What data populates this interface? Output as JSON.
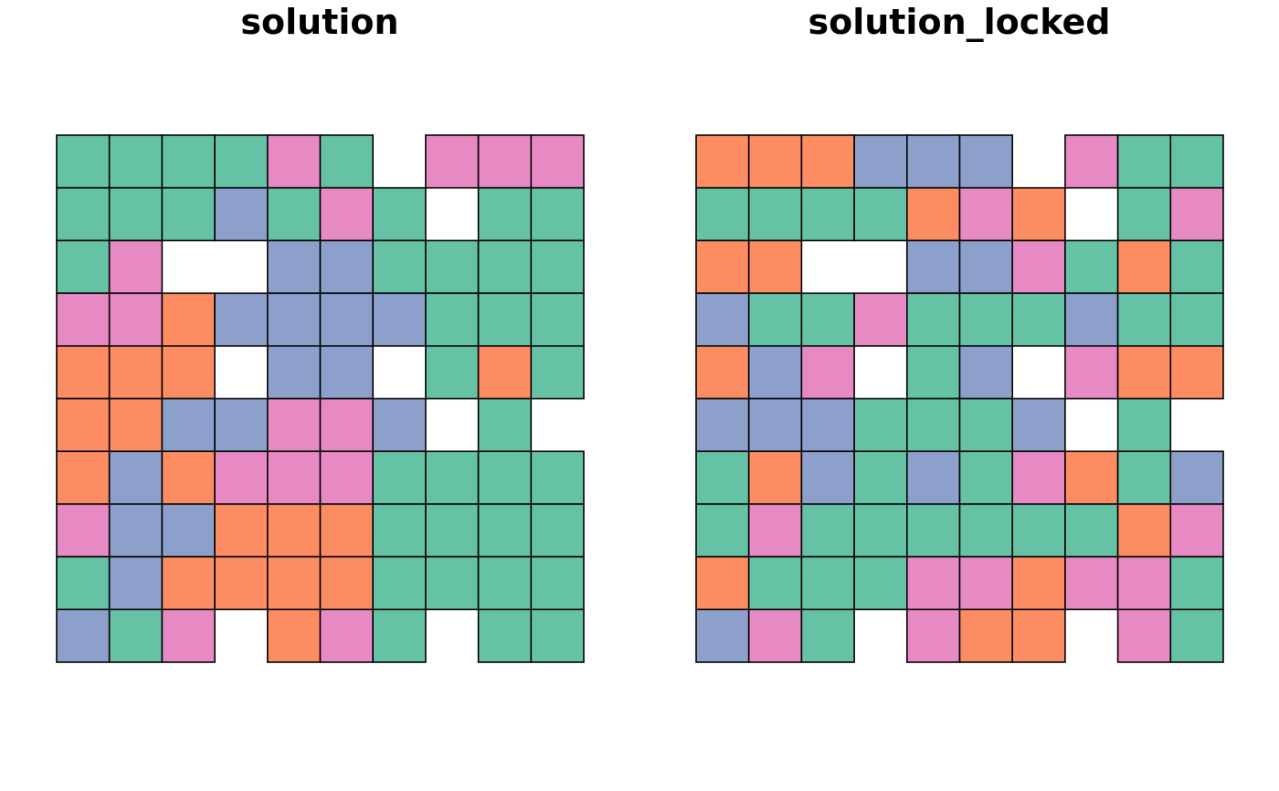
{
  "palette": {
    "0": "#66c2a5",
    "1": "#fc8d62",
    "2": "#8da0cb",
    "3": "#e78ac3"
  },
  "chart_data": [
    {
      "type": "heatmap",
      "title": "solution",
      "legend": "none",
      "grid": [
        [
          0,
          0,
          0,
          0,
          3,
          0,
          null,
          3,
          3,
          3
        ],
        [
          0,
          0,
          0,
          2,
          0,
          3,
          0,
          null,
          0,
          0
        ],
        [
          0,
          3,
          null,
          null,
          2,
          2,
          0,
          0,
          0,
          0
        ],
        [
          3,
          3,
          1,
          2,
          2,
          2,
          2,
          0,
          0,
          0
        ],
        [
          1,
          1,
          1,
          null,
          2,
          2,
          null,
          0,
          1,
          0
        ],
        [
          1,
          1,
          2,
          2,
          3,
          3,
          2,
          null,
          0,
          null
        ],
        [
          1,
          2,
          1,
          3,
          3,
          3,
          0,
          0,
          0,
          0
        ],
        [
          3,
          2,
          2,
          1,
          1,
          1,
          0,
          0,
          0,
          0
        ],
        [
          0,
          2,
          1,
          1,
          1,
          1,
          0,
          0,
          0,
          0
        ],
        [
          2,
          0,
          3,
          null,
          1,
          3,
          0,
          null,
          0,
          0
        ]
      ]
    },
    {
      "type": "heatmap",
      "title": "solution_locked",
      "legend": "none",
      "grid": [
        [
          1,
          1,
          1,
          2,
          2,
          2,
          null,
          3,
          0,
          0
        ],
        [
          0,
          0,
          0,
          0,
          1,
          3,
          1,
          null,
          0,
          3
        ],
        [
          1,
          1,
          null,
          null,
          2,
          2,
          3,
          0,
          1,
          0
        ],
        [
          2,
          0,
          0,
          3,
          0,
          0,
          0,
          2,
          0,
          0
        ],
        [
          1,
          2,
          3,
          null,
          0,
          2,
          null,
          3,
          1,
          1
        ],
        [
          2,
          2,
          2,
          0,
          0,
          0,
          2,
          null,
          0,
          null
        ],
        [
          0,
          1,
          2,
          0,
          2,
          0,
          3,
          1,
          0,
          2
        ],
        [
          0,
          3,
          0,
          0,
          0,
          0,
          0,
          0,
          1,
          3
        ],
        [
          1,
          0,
          0,
          0,
          3,
          3,
          1,
          3,
          3,
          0
        ],
        [
          2,
          3,
          0,
          null,
          3,
          1,
          1,
          null,
          3,
          0
        ]
      ]
    }
  ]
}
